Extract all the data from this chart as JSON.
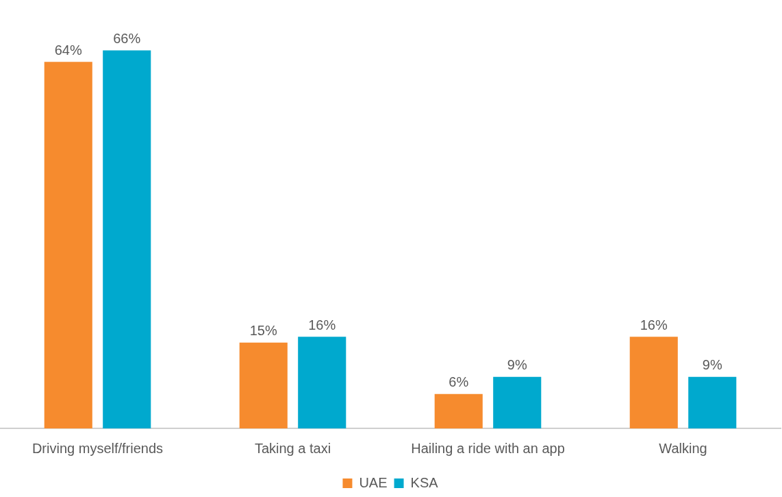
{
  "chart_data": {
    "type": "bar",
    "categories": [
      "Driving myself/friends",
      "Taking a taxi",
      "Hailing a ride with an app",
      "Walking"
    ],
    "series": [
      {
        "name": "UAE",
        "color": "#f68b2e",
        "values": [
          64,
          15,
          6,
          16
        ],
        "value_labels": [
          "64%",
          "15%",
          "6%",
          "16%"
        ]
      },
      {
        "name": "KSA",
        "color": "#00a9ce",
        "values": [
          66,
          16,
          9,
          9
        ],
        "value_labels": [
          "66%",
          "16%",
          "9%",
          "9%"
        ]
      }
    ],
    "legend": "bottom",
    "grid": false
  }
}
